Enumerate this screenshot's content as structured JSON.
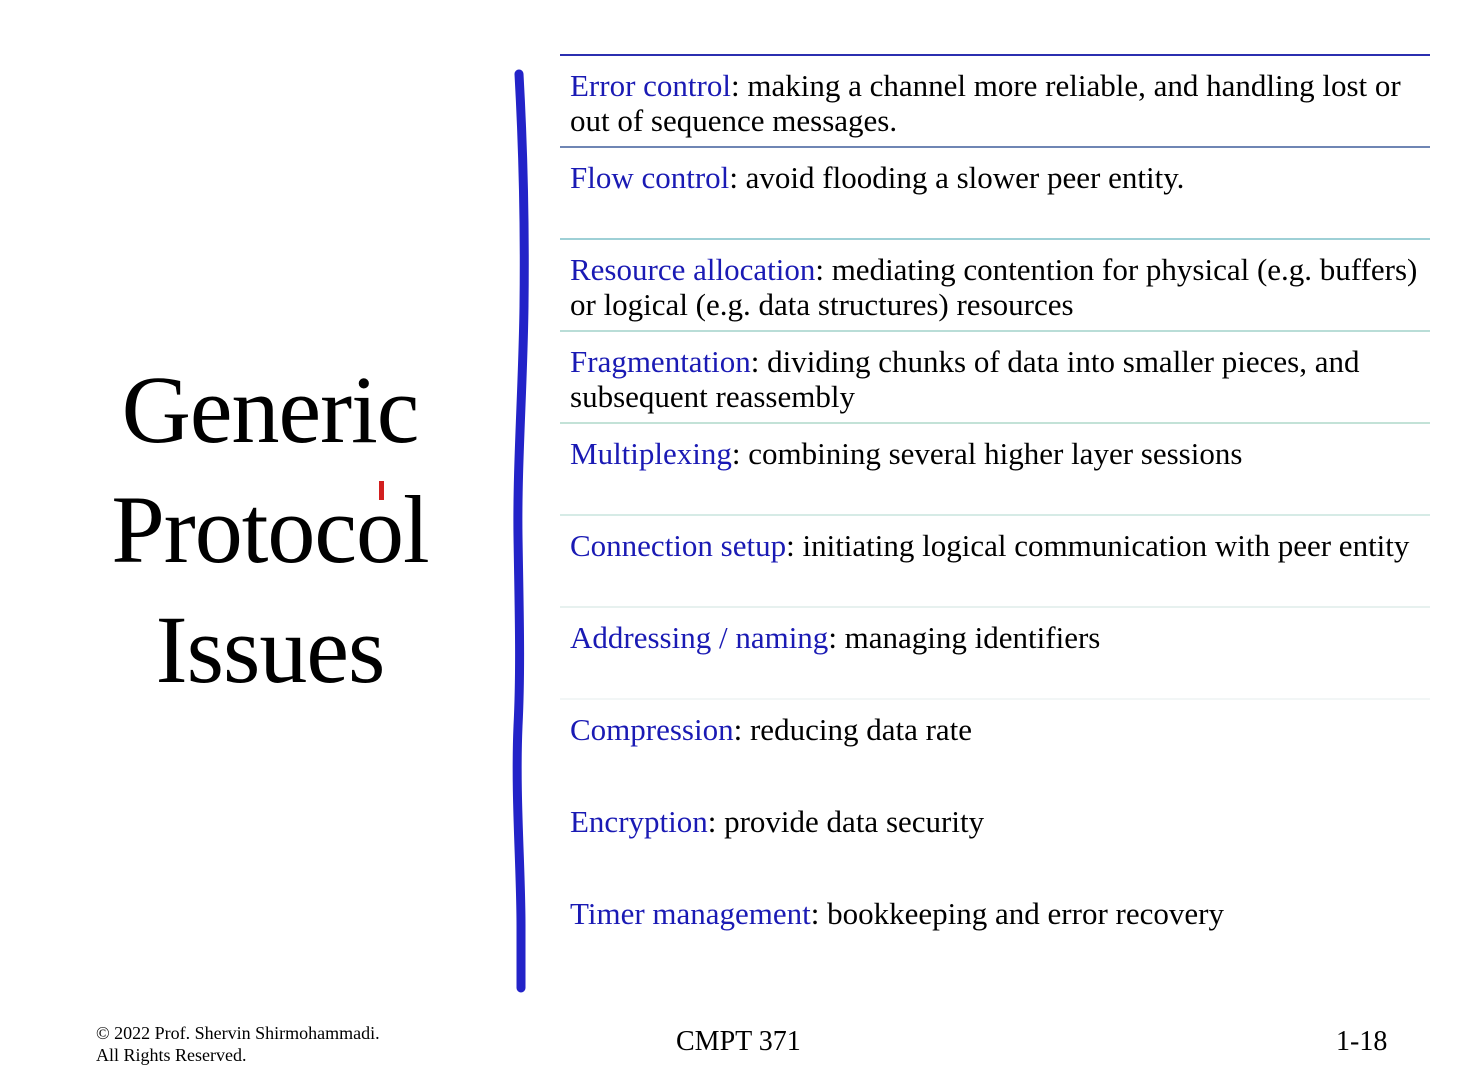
{
  "slide": {
    "title_lines": [
      "Generic",
      "Protocol",
      "Issues"
    ],
    "items": [
      {
        "term": "Error control",
        "desc": ": making a channel more reliable, and handling lost or out of sequence messages."
      },
      {
        "term": "Flow control",
        "desc": ": avoid flooding a slower peer entity."
      },
      {
        "term": "Resource allocation",
        "desc": ": mediating contention for physical (e.g. buffers) or logical (e.g. data structures) resources"
      },
      {
        "term": "Fragmentation",
        "desc": ": dividing chunks of data into smaller pieces, and subsequent reassembly"
      },
      {
        "term": "Multiplexing",
        "desc": ": combining several higher layer sessions"
      },
      {
        "term": "Connection setup",
        "desc": ": initiating logical communication with peer entity"
      },
      {
        "term": "Addressing / naming",
        "desc": ": managing identifiers"
      },
      {
        "term": "Compression",
        "desc": ": reducing data rate"
      },
      {
        "term": "Encryption",
        "desc": ": provide data security"
      },
      {
        "term": "Timer management",
        "desc": ": bookkeeping and error recovery"
      }
    ]
  },
  "footer": {
    "copyright_line1": "© 2022 Prof. Shervin Shirmohammadi.",
    "copyright_line2": "All Rights Reserved.",
    "course": "CMPT 371",
    "page": "1-18"
  },
  "colors": {
    "term": "#1a1ab4",
    "ink_stroke": "#2323c8",
    "cursor_mark": "#d21f1f"
  }
}
